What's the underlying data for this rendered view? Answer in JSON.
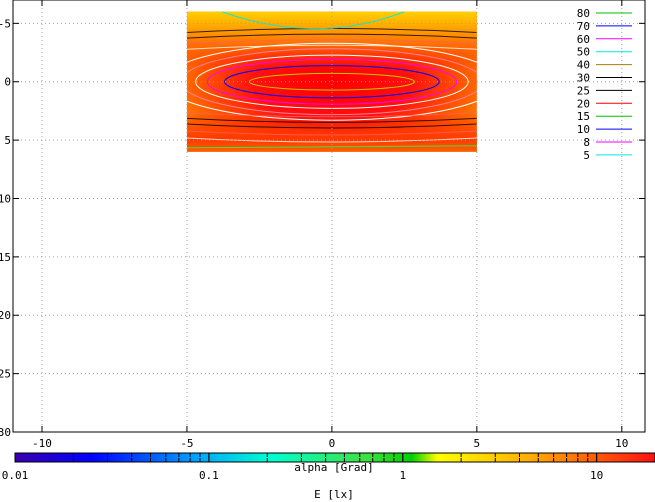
{
  "chart_data": {
    "type": "heatmap",
    "xlabel": "alpha [Grad]",
    "ylabel": "",
    "colorbar_label": "E [lx]",
    "xlim": [
      -11,
      10.8
    ],
    "ylim": [
      30,
      -7
    ],
    "x_ticks": [
      -10,
      -5,
      0,
      5,
      10
    ],
    "x_tick_labels": [
      "-10",
      "-5",
      "0",
      "5",
      "10"
    ],
    "y_ticks": [
      -5,
      0,
      5,
      10,
      15,
      20,
      25,
      30
    ],
    "y_tick_labels": [
      "-5",
      "0",
      "5",
      "10",
      "15",
      "20",
      "25",
      "30"
    ],
    "grid": true,
    "legend_position": "top-right",
    "heatmap_extent": {
      "x": [
        -5,
        5
      ],
      "y": [
        -6,
        6
      ]
    },
    "colorbar": {
      "scale": "log",
      "range": [
        0.01,
        20
      ],
      "ticks": [
        0.01,
        0.1,
        1,
        10
      ],
      "tick_labels": [
        "0.01",
        "0.1",
        "1",
        "10"
      ]
    },
    "contour_levels": [
      {
        "label": "80",
        "color": "#00c000"
      },
      {
        "label": "70",
        "color": "#0000ff"
      },
      {
        "label": "60",
        "color": "#ff00ff"
      },
      {
        "label": "50",
        "color": "#00e8e8"
      },
      {
        "label": "40",
        "color": "#a08000"
      },
      {
        "label": "30",
        "color": "#000000"
      },
      {
        "label": "25",
        "color": "#000000"
      },
      {
        "label": "20",
        "color": "#ff0000"
      },
      {
        "label": "15",
        "color": "#00c000"
      },
      {
        "label": "10",
        "color": "#0000ff"
      },
      {
        "label": "8",
        "color": "#ff00ff"
      },
      {
        "label": "5",
        "color": "#00e8e8"
      }
    ]
  }
}
